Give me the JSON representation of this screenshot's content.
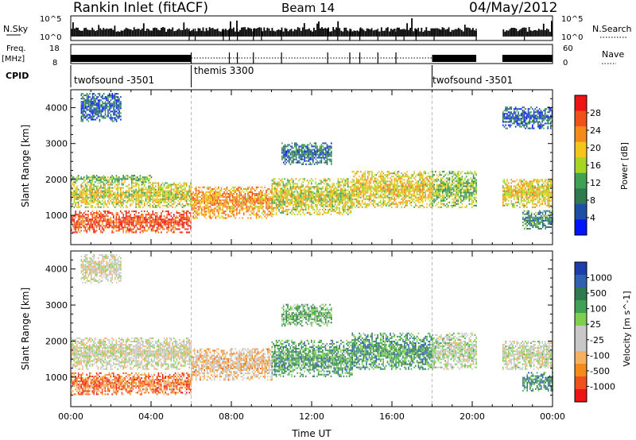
{
  "header": {
    "station": "Rankin Inlet (fitACF)",
    "beam": "Beam 14",
    "date": "04/May/2012"
  },
  "panels": {
    "nsky": {
      "left_label": "N.Sky",
      "right_label": "N.Search",
      "left_ticks": [
        "10^5",
        "10^0"
      ],
      "right_ticks": [
        "10^5",
        "10^0"
      ]
    },
    "freq": {
      "left_label": "Freq.",
      "left_unit": "[MHz]",
      "right_label": "Nave",
      "left_ticks": [
        "18",
        "8"
      ],
      "right_ticks": [
        "60",
        "0"
      ]
    },
    "cpid": {
      "label": "CPID",
      "segments": [
        {
          "name": "twofsound -3501",
          "start": 0,
          "end": 6
        },
        {
          "name": "themis 3300",
          "start": 6,
          "end": 18
        },
        {
          "name": "twofsound -3501",
          "start": 18,
          "end": 24
        }
      ]
    }
  },
  "colors": {
    "power": [
      "#0015ff",
      "#1d4fa6",
      "#2f7a4e",
      "#3fa153",
      "#a6d623",
      "#f5c61a",
      "#f48a1a",
      "#f0501a",
      "#ec1414"
    ],
    "velocity": [
      "#ec1414",
      "#f0501a",
      "#f48a1a",
      "#f5b060",
      "#c8c8c8",
      "#c8c8c8",
      "#7ed04c",
      "#3fa153",
      "#2f7a4e",
      "#3162b0",
      "#1d3fae"
    ]
  },
  "chart_data": [
    {
      "type": "heatmap",
      "name": "power",
      "ylabel": "Slant Range [km]",
      "yticks": [
        1000,
        2000,
        3000,
        4000
      ],
      "ylim": [
        180,
        4500
      ],
      "xlim": [
        0,
        24
      ],
      "colorbar_label": "Power [dB]",
      "colorbar_ticks": [
        "4",
        "8",
        "12",
        "16",
        "20",
        "24",
        "28"
      ],
      "colorbar_range": [
        0,
        32
      ],
      "bands": [
        {
          "t0": 0.0,
          "t1": 6.0,
          "r0": 500,
          "r1": 1100,
          "level": 0.85
        },
        {
          "t0": 0.0,
          "t1": 6.0,
          "r0": 1200,
          "r1": 1900,
          "level": 0.55
        },
        {
          "t0": 0.0,
          "t1": 4.0,
          "r0": 1900,
          "r1": 2100,
          "level": 0.4
        },
        {
          "t0": 0.5,
          "t1": 2.5,
          "r0": 3600,
          "r1": 4400,
          "level": 0.2
        },
        {
          "t0": 6.0,
          "t1": 10.0,
          "r0": 900,
          "r1": 1800,
          "level": 0.7
        },
        {
          "t0": 10.0,
          "t1": 14.0,
          "r0": 1000,
          "r1": 2000,
          "level": 0.55
        },
        {
          "t0": 14.0,
          "t1": 18.0,
          "r0": 1200,
          "r1": 2200,
          "level": 0.6
        },
        {
          "t0": 18.0,
          "t1": 20.2,
          "r0": 1200,
          "r1": 2200,
          "level": 0.45
        },
        {
          "t0": 21.5,
          "t1": 24.0,
          "r0": 1200,
          "r1": 2000,
          "level": 0.6
        },
        {
          "t0": 21.5,
          "t1": 24.0,
          "r0": 3400,
          "r1": 4000,
          "level": 0.2
        },
        {
          "t0": 22.5,
          "t1": 24.0,
          "r0": 600,
          "r1": 1100,
          "level": 0.3
        },
        {
          "t0": 10.5,
          "t1": 13.0,
          "r0": 2400,
          "r1": 3000,
          "level": 0.25
        }
      ]
    },
    {
      "type": "heatmap",
      "name": "velocity",
      "ylabel": "Slant Range [km]",
      "yticks": [
        1000,
        2000,
        3000,
        4000
      ],
      "ylim": [
        180,
        4500
      ],
      "xlim": [
        0,
        24
      ],
      "xlabel": "Time UT",
      "xticks": [
        "00:00",
        "04:00",
        "08:00",
        "12:00",
        "16:00",
        "20:00",
        "00:00"
      ],
      "colorbar_label": "Velocity [m s^-1]",
      "colorbar_ticks": [
        "1000",
        "500",
        "100",
        "25",
        "-25",
        "-100",
        "-500",
        "-1000"
      ],
      "bands": [
        {
          "t0": 0.0,
          "t1": 6.0,
          "r0": 500,
          "r1": 1100,
          "level": 0.2
        },
        {
          "t0": 0.0,
          "t1": 6.0,
          "r0": 1200,
          "r1": 2100,
          "level": 0.45
        },
        {
          "t0": 0.5,
          "t1": 2.5,
          "r0": 3600,
          "r1": 4400,
          "level": 0.45
        },
        {
          "t0": 6.0,
          "t1": 10.0,
          "r0": 900,
          "r1": 1800,
          "level": 0.35
        },
        {
          "t0": 10.0,
          "t1": 14.0,
          "r0": 1000,
          "r1": 2000,
          "level": 0.7
        },
        {
          "t0": 14.0,
          "t1": 18.0,
          "r0": 1200,
          "r1": 2200,
          "level": 0.72
        },
        {
          "t0": 18.0,
          "t1": 20.2,
          "r0": 1200,
          "r1": 2200,
          "level": 0.5
        },
        {
          "t0": 21.5,
          "t1": 24.0,
          "r0": 1200,
          "r1": 2000,
          "level": 0.47
        },
        {
          "t0": 22.5,
          "t1": 24.0,
          "r0": 600,
          "r1": 1100,
          "level": 0.75
        },
        {
          "t0": 10.5,
          "t1": 13.0,
          "r0": 2400,
          "r1": 3000,
          "level": 0.65
        }
      ]
    }
  ]
}
